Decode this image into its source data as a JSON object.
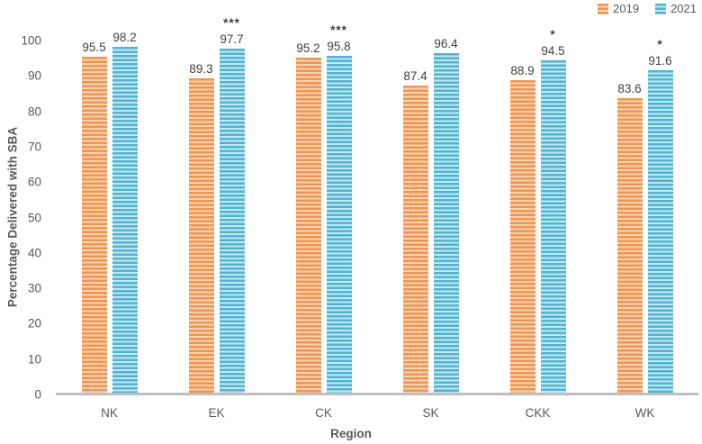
{
  "chart_data": {
    "type": "bar",
    "title": "",
    "categories": [
      "NK",
      "EK",
      "CK",
      "SK",
      "CKK",
      "WK"
    ],
    "series": [
      {
        "name": "2019",
        "color": "#F1944F",
        "stripe_color": "#FAD5B5",
        "values": [
          95.5,
          89.3,
          95.2,
          87.4,
          88.9,
          83.6
        ]
      },
      {
        "name": "2021",
        "color": "#4EB5D3",
        "stripe_color": "#C4E7F1",
        "values": [
          98.2,
          97.7,
          95.8,
          96.4,
          94.5,
          91.6
        ]
      }
    ],
    "significance_markers": {
      "series": "2021",
      "per_category": [
        "",
        "***",
        "***",
        "",
        "*",
        "*"
      ]
    },
    "xlabel": "Region",
    "ylabel": "Percentage Delivered with SBA",
    "ylim": [
      0,
      100
    ],
    "ytick_step": 10,
    "ytick_labels": [
      "0",
      "10",
      "20",
      "30",
      "40",
      "50",
      "60",
      "70",
      "80",
      "90",
      "100"
    ],
    "legend_position": "top-right",
    "grid": false,
    "bar_style": "horizontal-stripes"
  },
  "colors": {
    "axis_line": "#BFBFBF",
    "tick_text": "#595959",
    "data_label_text": "#404040",
    "background": "#FFFFFF"
  }
}
